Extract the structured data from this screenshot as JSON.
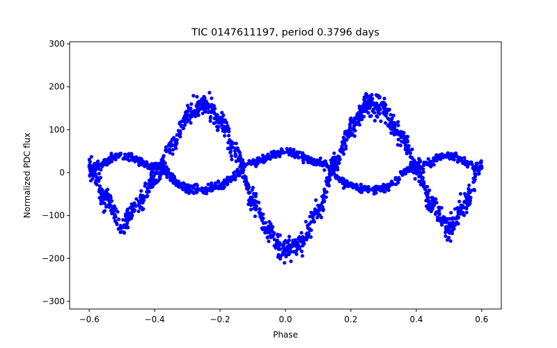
{
  "chart_data": {
    "type": "scatter",
    "title": "TIC 0147611197, period 0.3796 days",
    "xlabel": "Phase",
    "ylabel": "Normalized PDC flux",
    "xlim": [
      -0.66,
      0.66
    ],
    "ylim": [
      -318,
      305
    ],
    "x_ticks": [
      -0.6,
      -0.4,
      -0.2,
      0.0,
      0.2,
      0.4,
      0.6
    ],
    "x_tick_labels": [
      "−0.6",
      "−0.4",
      "−0.2",
      "0.0",
      "0.2",
      "0.4",
      "0.6"
    ],
    "y_ticks": [
      -300,
      -200,
      -100,
      0,
      100,
      200,
      300
    ],
    "y_tick_labels": [
      "−300",
      "−200",
      "−100",
      "0",
      "100",
      "200",
      "300"
    ],
    "grid": false,
    "marker_color": "#0000ff",
    "series": [
      {
        "phase_range": [
          -0.6,
          0.6
        ],
        "approx_points": [
          [
            -0.6,
            10
          ],
          [
            -0.55,
            -60
          ],
          [
            -0.5,
            -120
          ],
          [
            -0.45,
            -70
          ],
          [
            -0.4,
            -15
          ],
          [
            -0.35,
            60
          ],
          [
            -0.3,
            130
          ],
          [
            -0.25,
            160
          ],
          [
            -0.2,
            120
          ],
          [
            -0.15,
            50
          ],
          [
            -0.1,
            -70
          ],
          [
            -0.05,
            -140
          ],
          [
            0.0,
            -180
          ],
          [
            0.05,
            -160
          ],
          [
            0.1,
            -90
          ],
          [
            0.15,
            20
          ],
          [
            0.2,
            100
          ],
          [
            0.25,
            160
          ],
          [
            0.3,
            150
          ],
          [
            0.35,
            90
          ],
          [
            0.4,
            10
          ],
          [
            0.45,
            -80
          ],
          [
            0.5,
            -130
          ],
          [
            0.55,
            -70
          ],
          [
            0.6,
            10
          ]
        ]
      },
      {
        "phase_range": [
          -0.6,
          0.6
        ],
        "approx_points": [
          [
            -0.6,
            10
          ],
          [
            -0.5,
            40
          ],
          [
            -0.4,
            15
          ],
          [
            -0.3,
            -35
          ],
          [
            -0.25,
            -40
          ],
          [
            -0.2,
            -30
          ],
          [
            -0.1,
            25
          ],
          [
            0.0,
            50
          ],
          [
            0.1,
            25
          ],
          [
            0.2,
            -30
          ],
          [
            0.25,
            -40
          ],
          [
            0.3,
            -35
          ],
          [
            0.4,
            15
          ],
          [
            0.5,
            40
          ],
          [
            0.6,
            10
          ]
        ]
      }
    ]
  }
}
